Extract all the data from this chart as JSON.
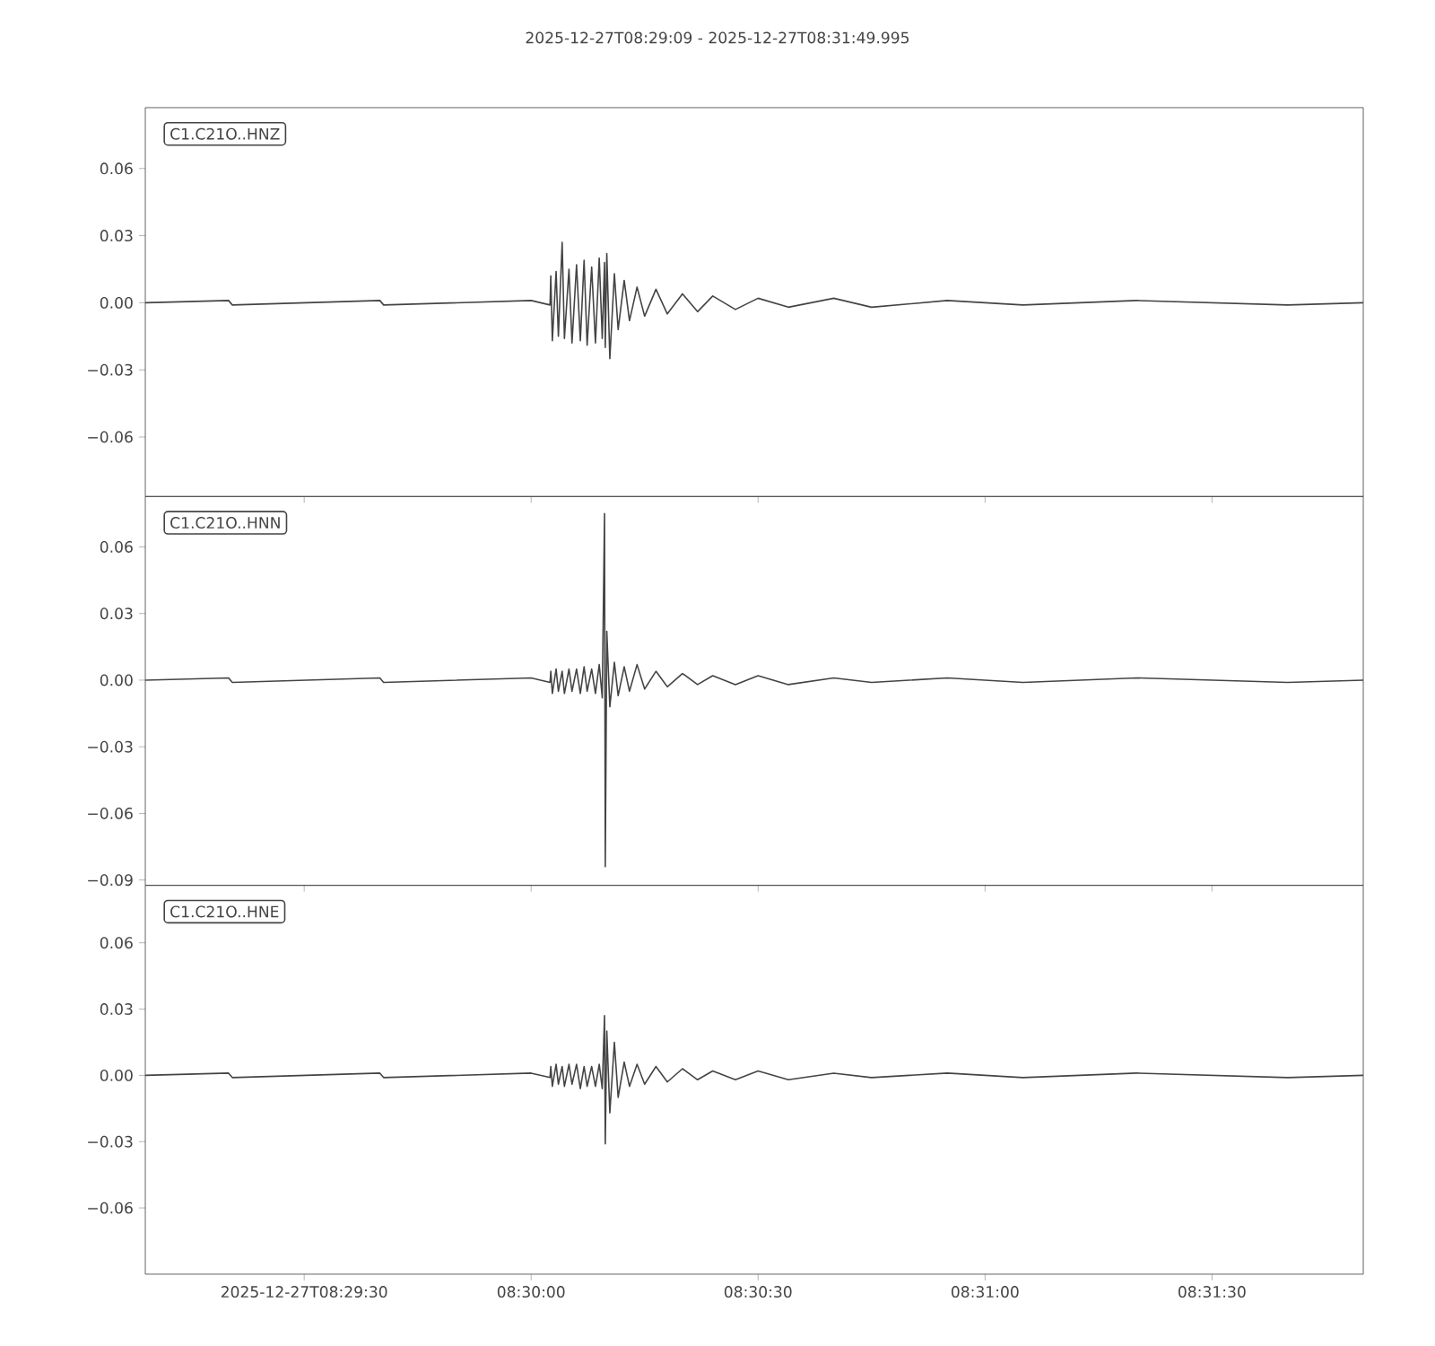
{
  "chart_data": [
    {
      "type": "line",
      "title": "2025-12-27T08:29:09  -  2025-12-27T08:31:49.995",
      "annotations": [
        "C1.C21O..HNZ"
      ],
      "tick_labels": "y",
      "grid": false,
      "marker": "none",
      "line_style": "solid",
      "color": "#444444",
      "xlim": [
        8.485833,
        8.530554
      ],
      "ylim": [
        -0.0866,
        0.0872
      ],
      "xticks": [
        {
          "value": 8.491667,
          "label": null
        },
        {
          "value": 8.5,
          "label": null
        },
        {
          "value": 8.508333,
          "label": null
        },
        {
          "value": 8.516667,
          "label": null
        },
        {
          "value": 8.525,
          "label": null
        }
      ],
      "yticks": [
        {
          "value": -0.06,
          "label": "−0.06"
        },
        {
          "value": -0.03,
          "label": "−0.03"
        },
        {
          "value": 0,
          "label": "0.00"
        },
        {
          "value": 0.03,
          "label": "0.03"
        },
        {
          "value": 0.06,
          "label": "0.06"
        }
      ],
      "x": [
        8.485833,
        8.488889,
        8.489028,
        8.494444,
        8.494583,
        8.5,
        8.500694,
        8.500722,
        8.500778,
        8.500917,
        8.501,
        8.501139,
        8.501222,
        8.501389,
        8.5015,
        8.501667,
        8.501806,
        8.501944,
        8.502056,
        8.502222,
        8.502361,
        8.5025,
        8.502611,
        8.502694,
        8.502722,
        8.502778,
        8.502889,
        8.503056,
        8.503194,
        8.503417,
        8.503611,
        8.503889,
        8.504167,
        8.504583,
        8.505,
        8.505556,
        8.506111,
        8.506667,
        8.5075,
        8.508333,
        8.509444,
        8.511111,
        8.5125,
        8.515278,
        8.518056,
        8.522222,
        8.527778,
        8.530554
      ],
      "values": [
        0,
        0.001,
        -0.001,
        0.001,
        -0.001,
        0.001,
        -0.001,
        0.012,
        -0.017,
        0.014,
        -0.015,
        0.027,
        -0.016,
        0.015,
        -0.018,
        0.017,
        -0.017,
        0.019,
        -0.019,
        0.016,
        -0.018,
        0.02,
        -0.016,
        0.018,
        -0.02,
        0.022,
        -0.025,
        0.013,
        -0.012,
        0.01,
        -0.008,
        0.007,
        -0.006,
        0.006,
        -0.005,
        0.004,
        -0.004,
        0.003,
        -0.003,
        0.002,
        -0.002,
        0.002,
        -0.002,
        0.001,
        -0.001,
        0.001,
        -0.001,
        0
      ]
    },
    {
      "type": "line",
      "annotations": [
        "C1.C21O..HNN"
      ],
      "tick_labels": "y",
      "grid": false,
      "marker": "none",
      "line_style": "solid",
      "color": "#444444",
      "xlim": [
        8.485833,
        8.530554
      ],
      "ylim": [
        -0.0924,
        0.0827
      ],
      "xticks": [
        {
          "value": 8.491667,
          "label": null
        },
        {
          "value": 8.5,
          "label": null
        },
        {
          "value": 8.508333,
          "label": null
        },
        {
          "value": 8.516667,
          "label": null
        },
        {
          "value": 8.525,
          "label": null
        }
      ],
      "yticks": [
        {
          "value": -0.09,
          "label": "−0.09"
        },
        {
          "value": -0.06,
          "label": "−0.06"
        },
        {
          "value": -0.03,
          "label": "−0.03"
        },
        {
          "value": 0,
          "label": "0.00"
        },
        {
          "value": 0.03,
          "label": "0.03"
        },
        {
          "value": 0.06,
          "label": "0.06"
        }
      ],
      "x": [
        8.485833,
        8.488889,
        8.489028,
        8.494444,
        8.494583,
        8.5,
        8.500694,
        8.500722,
        8.500778,
        8.500917,
        8.501,
        8.501139,
        8.501222,
        8.501389,
        8.5015,
        8.501667,
        8.501806,
        8.501944,
        8.502056,
        8.502222,
        8.502361,
        8.5025,
        8.502611,
        8.502694,
        8.502722,
        8.502778,
        8.502889,
        8.503056,
        8.503194,
        8.503417,
        8.503611,
        8.503889,
        8.504167,
        8.504583,
        8.505,
        8.505556,
        8.506111,
        8.506667,
        8.5075,
        8.508333,
        8.509444,
        8.511111,
        8.5125,
        8.515278,
        8.518056,
        8.522222,
        8.527778,
        8.530554
      ],
      "values": [
        0,
        0.001,
        -0.001,
        0.001,
        -0.001,
        0.001,
        -0.001,
        0.004,
        -0.006,
        0.005,
        -0.005,
        0.004,
        -0.006,
        0.005,
        -0.005,
        0.005,
        -0.006,
        0.006,
        -0.005,
        0.005,
        -0.006,
        0.007,
        -0.008,
        0.075,
        -0.084,
        0.022,
        -0.012,
        0.008,
        -0.007,
        0.006,
        -0.005,
        0.007,
        -0.004,
        0.004,
        -0.003,
        0.003,
        -0.002,
        0.002,
        -0.002,
        0.002,
        -0.002,
        0.001,
        -0.001,
        0.001,
        -0.001,
        0.001,
        -0.001,
        0
      ]
    },
    {
      "type": "line",
      "annotations": [
        "C1.C21O..HNE"
      ],
      "grid": false,
      "marker": "none",
      "line_style": "solid",
      "color": "#444444",
      "xlim": [
        8.485833,
        8.530554
      ],
      "ylim": [
        -0.09,
        0.086
      ],
      "xticks": [
        {
          "value": 8.491667,
          "label": "2025-12-27T08:29:30"
        },
        {
          "value": 8.5,
          "label": "08:30:00"
        },
        {
          "value": 8.508333,
          "label": "08:30:30"
        },
        {
          "value": 8.516667,
          "label": "08:31:00"
        },
        {
          "value": 8.525,
          "label": "08:31:30"
        }
      ],
      "yticks": [
        {
          "value": -0.06,
          "label": "−0.06"
        },
        {
          "value": -0.03,
          "label": "−0.03"
        },
        {
          "value": 0,
          "label": "0.00"
        },
        {
          "value": 0.03,
          "label": "0.03"
        },
        {
          "value": 0.06,
          "label": "0.06"
        }
      ],
      "x": [
        8.485833,
        8.488889,
        8.489028,
        8.494444,
        8.494583,
        8.5,
        8.500694,
        8.500722,
        8.500778,
        8.500917,
        8.501,
        8.501139,
        8.501222,
        8.501389,
        8.5015,
        8.501667,
        8.501806,
        8.501944,
        8.502056,
        8.502222,
        8.502361,
        8.5025,
        8.502611,
        8.502694,
        8.502722,
        8.502778,
        8.502889,
        8.503056,
        8.503194,
        8.503417,
        8.503611,
        8.503889,
        8.504167,
        8.504583,
        8.505,
        8.505556,
        8.506111,
        8.506667,
        8.5075,
        8.508333,
        8.509444,
        8.511111,
        8.5125,
        8.515278,
        8.518056,
        8.522222,
        8.527778,
        8.530554
      ],
      "values": [
        0,
        0.001,
        -0.001,
        0.001,
        -0.001,
        0.001,
        -0.001,
        0.004,
        -0.005,
        0.005,
        -0.004,
        0.004,
        -0.005,
        0.005,
        -0.004,
        0.005,
        -0.006,
        0.004,
        -0.005,
        0.004,
        -0.005,
        0.005,
        -0.006,
        0.027,
        -0.031,
        0.02,
        -0.017,
        0.015,
        -0.01,
        0.006,
        -0.005,
        0.005,
        -0.004,
        0.004,
        -0.003,
        0.003,
        -0.002,
        0.002,
        -0.002,
        0.002,
        -0.002,
        0.001,
        -0.001,
        0.001,
        -0.001,
        0.001,
        -0.001,
        0
      ]
    }
  ]
}
